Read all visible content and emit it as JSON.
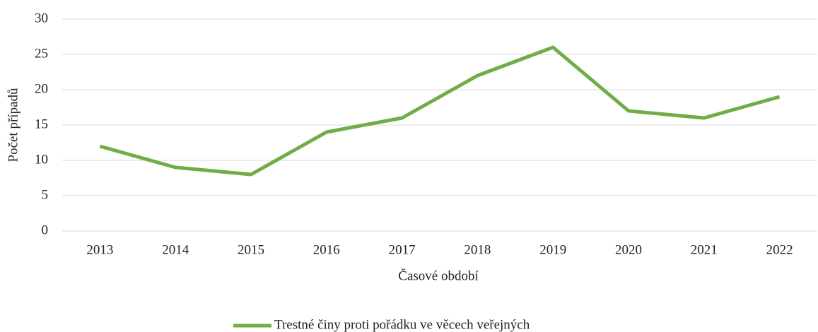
{
  "chart_data": {
    "type": "line",
    "categories": [
      "2013",
      "2014",
      "2015",
      "2016",
      "2017",
      "2018",
      "2019",
      "2020",
      "2021",
      "2022"
    ],
    "series": [
      {
        "name": "Trestné činy proti pořádku ve věcech veřejných",
        "color": "#70ad47",
        "values": [
          12,
          9,
          8,
          14,
          16,
          22,
          26,
          17,
          16,
          19
        ]
      }
    ],
    "xlabel": "Časové období",
    "ylabel": "Počet případů",
    "ylim": [
      0,
      30
    ],
    "yticks": [
      0,
      5,
      10,
      15,
      20,
      25,
      30
    ],
    "grid": true,
    "legend": "bottom"
  }
}
